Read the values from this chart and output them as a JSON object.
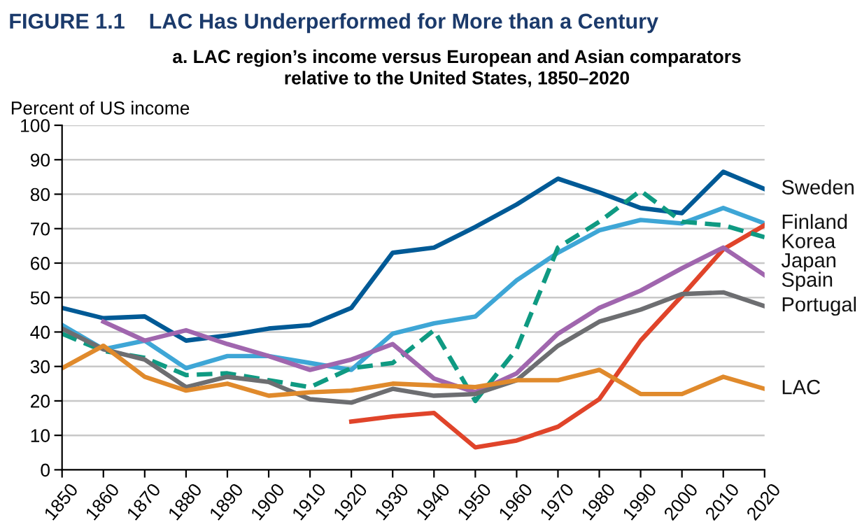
{
  "chart_data": {
    "type": "line",
    "title": "FIGURE 1.1    LAC Has Underperformed for More than a Century",
    "subtitle": "a. LAC region’s income versus European and Asian comparators\nrelative to the United States, 1850–2020",
    "ylabel": "Percent of US income",
    "x": [
      1850,
      1860,
      1870,
      1880,
      1890,
      1900,
      1910,
      1920,
      1930,
      1940,
      1950,
      1960,
      1970,
      1980,
      1990,
      2000,
      2010,
      2020
    ],
    "xlim": [
      1850,
      2020
    ],
    "xticks": [
      1850,
      1860,
      1870,
      1880,
      1890,
      1900,
      1910,
      1920,
      1930,
      1940,
      1950,
      1960,
      1970,
      1980,
      1990,
      2000,
      2010,
      2020
    ],
    "ylim": [
      0,
      100
    ],
    "yticks": [
      0,
      10,
      20,
      30,
      40,
      50,
      60,
      70,
      80,
      90,
      100
    ],
    "grid": "y",
    "legend": false,
    "marker": "none",
    "series": [
      {
        "name": "Sweden",
        "color": "#005a96",
        "values": [
          47,
          44,
          44.5,
          37.5,
          39,
          41,
          42,
          47,
          63,
          64.5,
          70.5,
          77,
          84.5,
          80.5,
          76,
          74.5,
          86.5,
          81.5
        ]
      },
      {
        "name": "Finland",
        "color": "#3ea6d6",
        "values": [
          42,
          35,
          37.5,
          29.5,
          33,
          33,
          31,
          29,
          39.5,
          42.5,
          44.5,
          55,
          63,
          69.5,
          72.5,
          71.5,
          76,
          71.5
        ]
      },
      {
        "name": "Korea",
        "color": "#e0442a",
        "values": [
          null,
          null,
          null,
          null,
          null,
          null,
          null,
          14,
          15.5,
          16.5,
          6.5,
          8.5,
          12.5,
          20.5,
          37.5,
          50.5,
          64,
          71
        ]
      },
      {
        "name": "Japan",
        "color": "#0f9a82",
        "line_style": "dashed",
        "values": [
          39.5,
          34.5,
          32.5,
          27.5,
          28,
          26,
          24,
          29.5,
          31,
          40.5,
          20,
          35,
          64.5,
          72,
          81,
          72,
          71,
          67.5
        ]
      },
      {
        "name": "Spain",
        "color": "#a066ae",
        "values": [
          null,
          43,
          37.5,
          40.5,
          36.5,
          33,
          29,
          32,
          36.5,
          26.5,
          22.5,
          28,
          39.5,
          47,
          52,
          58.5,
          64.5,
          56.5
        ]
      },
      {
        "name": "Portugal",
        "color": "#6d6e71",
        "values": [
          41,
          35,
          32,
          24,
          27,
          25.5,
          20.5,
          19.5,
          23.5,
          21.5,
          22,
          26,
          36,
          43,
          46.5,
          51,
          51.5,
          47.5
        ]
      },
      {
        "name": "LAC",
        "color": "#e08a2c",
        "values": [
          29.5,
          36,
          27,
          23,
          25,
          21.5,
          22.5,
          23,
          25,
          24.5,
          24,
          26,
          26,
          29,
          22,
          22,
          27,
          23.5
        ]
      }
    ]
  }
}
